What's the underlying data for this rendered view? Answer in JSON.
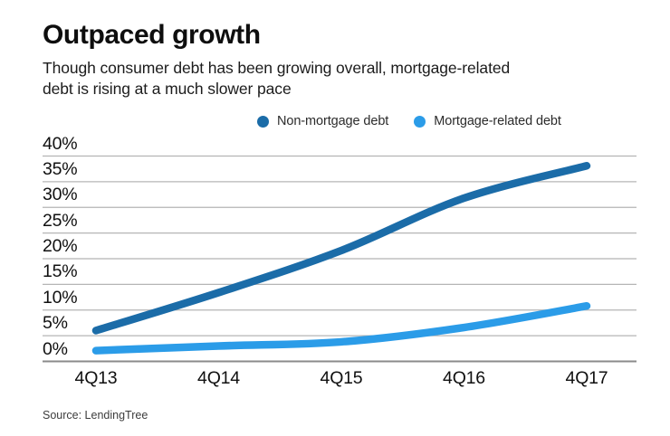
{
  "chart_data": {
    "type": "line",
    "title": "Outpaced growth",
    "subtitle": "Though consumer debt has been growing overall, mortgage-related debt is rising at a much slower pace",
    "subtitle_lines": [
      "Though consumer debt has been growing overall, mortgage-related",
      "debt is rising at a much slower pace"
    ],
    "x_labels": [
      "4Q13",
      "4Q14",
      "4Q15",
      "4Q16",
      "4Q17"
    ],
    "y_ticks": [
      0,
      5,
      10,
      15,
      20,
      25,
      30,
      35,
      40
    ],
    "y_tick_labels": [
      "0%",
      "5%",
      "10%",
      "15%",
      "20%",
      "25%",
      "30%",
      "35%",
      "40%"
    ],
    "ylim": [
      0,
      40
    ],
    "grid": true,
    "legend_position": "top",
    "series": [
      {
        "name": "Non-mortgage debt",
        "color": "#1b6ca8",
        "values": [
          6.0,
          13.4,
          21.6,
          31.8,
          38.1
        ]
      },
      {
        "name": "Mortgage-related debt",
        "color": "#2b9ce8",
        "values": [
          2.1,
          3.0,
          3.8,
          6.6,
          10.8
        ]
      }
    ],
    "source": "Source: LendingTree",
    "colors": {
      "grid": "#b5b5b5",
      "axis": "#8a8a8a",
      "text": "#101010"
    }
  }
}
